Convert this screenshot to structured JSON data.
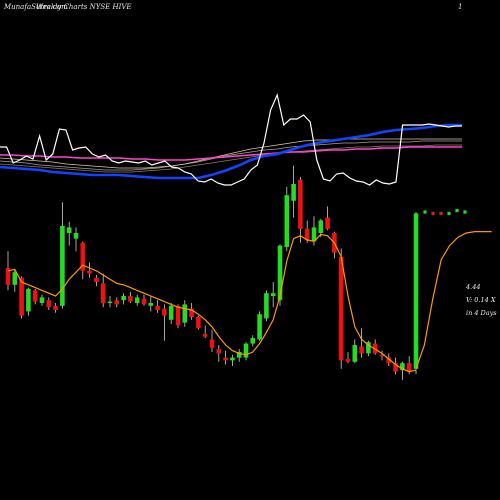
{
  "header": {
    "left_text": "MunafaSutra.com",
    "center_text": "Weekly Charts NYSE HIVE",
    "right_text": "1"
  },
  "info": {
    "price": "4.44",
    "volume": "V: 0.14  X",
    "days": "in  4  Days"
  },
  "colors": {
    "up": "#22dd22",
    "down": "#ee1111",
    "ema": "#ff9900",
    "volume_line": "#ffffff",
    "blue_ma": "#1144ff",
    "pink_ma": "#ff44cc"
  },
  "chart_data": {
    "type": "candlestick",
    "candles": [
      {
        "o": 12.0,
        "h": 13.2,
        "l": 10.4,
        "c": 10.8,
        "dir": "down"
      },
      {
        "o": 10.8,
        "h": 11.9,
        "l": 10.3,
        "c": 11.7,
        "dir": "up"
      },
      {
        "o": 11.3,
        "h": 11.4,
        "l": 8.4,
        "c": 8.6,
        "dir": "down"
      },
      {
        "o": 8.9,
        "h": 10.6,
        "l": 8.6,
        "c": 10.5,
        "dir": "up"
      },
      {
        "o": 10.4,
        "h": 10.5,
        "l": 9.4,
        "c": 9.6,
        "dir": "down"
      },
      {
        "o": 9.5,
        "h": 10.1,
        "l": 9.3,
        "c": 9.9,
        "dir": "up"
      },
      {
        "o": 9.7,
        "h": 9.9,
        "l": 9.0,
        "c": 9.2,
        "dir": "down"
      },
      {
        "o": 9.3,
        "h": 9.5,
        "l": 8.8,
        "c": 9.0,
        "dir": "down"
      },
      {
        "o": 9.3,
        "h": 16.7,
        "l": 9.1,
        "c": 15.0,
        "dir": "up"
      },
      {
        "o": 14.9,
        "h": 15.3,
        "l": 13.6,
        "c": 14.5,
        "dir": "up"
      },
      {
        "o": 14.1,
        "h": 14.9,
        "l": 13.2,
        "c": 14.5,
        "dir": "up"
      },
      {
        "o": 13.8,
        "h": 13.9,
        "l": 11.2,
        "c": 11.8,
        "dir": "down"
      },
      {
        "o": 11.8,
        "h": 12.4,
        "l": 11.3,
        "c": 11.6,
        "dir": "down"
      },
      {
        "o": 11.3,
        "h": 11.5,
        "l": 10.7,
        "c": 11.0,
        "dir": "down"
      },
      {
        "o": 10.9,
        "h": 11.6,
        "l": 9.2,
        "c": 9.5,
        "dir": "down"
      },
      {
        "o": 9.5,
        "h": 10.0,
        "l": 9.2,
        "c": 9.6,
        "dir": "up"
      },
      {
        "o": 9.7,
        "h": 9.9,
        "l": 9.2,
        "c": 9.4,
        "dir": "down"
      },
      {
        "o": 9.7,
        "h": 10.2,
        "l": 9.4,
        "c": 10.0,
        "dir": "up"
      },
      {
        "o": 10.0,
        "h": 10.3,
        "l": 9.5,
        "c": 9.6,
        "dir": "down"
      },
      {
        "o": 9.5,
        "h": 10.1,
        "l": 9.3,
        "c": 9.9,
        "dir": "up"
      },
      {
        "o": 9.8,
        "h": 10.1,
        "l": 9.3,
        "c": 9.4,
        "dir": "down"
      },
      {
        "o": 9.5,
        "h": 10.0,
        "l": 8.9,
        "c": 9.3,
        "dir": "up"
      },
      {
        "o": 9.3,
        "h": 9.7,
        "l": 8.8,
        "c": 9.0,
        "dir": "down"
      },
      {
        "o": 9.1,
        "h": 9.4,
        "l": 6.8,
        "c": 8.6,
        "dir": "down"
      },
      {
        "o": 8.3,
        "h": 9.5,
        "l": 8.0,
        "c": 9.3,
        "dir": "up"
      },
      {
        "o": 9.3,
        "h": 9.4,
        "l": 7.7,
        "c": 7.9,
        "dir": "down"
      },
      {
        "o": 8.1,
        "h": 9.7,
        "l": 7.8,
        "c": 9.4,
        "dir": "up"
      },
      {
        "o": 9.1,
        "h": 9.5,
        "l": 8.3,
        "c": 8.5,
        "dir": "down"
      },
      {
        "o": 8.5,
        "h": 8.6,
        "l": 7.6,
        "c": 7.7,
        "dir": "down"
      },
      {
        "o": 7.3,
        "h": 7.9,
        "l": 7.0,
        "c": 7.1,
        "dir": "down"
      },
      {
        "o": 6.9,
        "h": 7.6,
        "l": 6.0,
        "c": 6.3,
        "dir": "down"
      },
      {
        "o": 6.2,
        "h": 6.5,
        "l": 5.3,
        "c": 5.9,
        "dir": "down"
      },
      {
        "o": 5.6,
        "h": 6.1,
        "l": 5.1,
        "c": 5.4,
        "dir": "down"
      },
      {
        "o": 5.4,
        "h": 5.8,
        "l": 5.0,
        "c": 5.6,
        "dir": "up"
      },
      {
        "o": 5.6,
        "h": 6.2,
        "l": 5.3,
        "c": 6.0,
        "dir": "up"
      },
      {
        "o": 5.6,
        "h": 6.7,
        "l": 5.4,
        "c": 6.6,
        "dir": "up"
      },
      {
        "o": 6.6,
        "h": 7.2,
        "l": 6.4,
        "c": 7.0,
        "dir": "up"
      },
      {
        "o": 6.9,
        "h": 8.9,
        "l": 6.8,
        "c": 8.7,
        "dir": "up"
      },
      {
        "o": 8.4,
        "h": 10.4,
        "l": 8.2,
        "c": 10.2,
        "dir": "up"
      },
      {
        "o": 10.0,
        "h": 11.0,
        "l": 9.2,
        "c": 10.2,
        "dir": "up"
      },
      {
        "o": 9.7,
        "h": 13.7,
        "l": 9.3,
        "c": 13.6,
        "dir": "up"
      },
      {
        "o": 13.5,
        "h": 17.8,
        "l": 13.2,
        "c": 17.2,
        "dir": "up"
      },
      {
        "o": 16.8,
        "h": 19.3,
        "l": 15.6,
        "c": 18.0,
        "dir": "up"
      },
      {
        "o": 18.3,
        "h": 18.5,
        "l": 13.8,
        "c": 14.8,
        "dir": "down"
      },
      {
        "o": 14.8,
        "h": 15.4,
        "l": 13.8,
        "c": 14.0,
        "dir": "down"
      },
      {
        "o": 13.9,
        "h": 15.7,
        "l": 13.6,
        "c": 14.9,
        "dir": "up"
      },
      {
        "o": 14.5,
        "h": 15.5,
        "l": 14.2,
        "c": 15.4,
        "dir": "up"
      },
      {
        "o": 15.6,
        "h": 16.4,
        "l": 14.7,
        "c": 14.8,
        "dir": "down"
      },
      {
        "o": 14.5,
        "h": 14.6,
        "l": 12.7,
        "c": 13.1,
        "dir": "down"
      },
      {
        "o": 12.8,
        "h": 13.4,
        "l": 4.8,
        "c": 5.4,
        "dir": "down"
      },
      {
        "o": 5.5,
        "h": 6.0,
        "l": 5.2,
        "c": 5.3,
        "dir": "down"
      },
      {
        "o": 5.3,
        "h": 6.9,
        "l": 5.2,
        "c": 6.5,
        "dir": "up"
      },
      {
        "o": 6.4,
        "h": 7.7,
        "l": 5.6,
        "c": 5.9,
        "dir": "down"
      },
      {
        "o": 5.9,
        "h": 6.8,
        "l": 5.7,
        "c": 6.7,
        "dir": "up"
      },
      {
        "o": 6.6,
        "h": 6.9,
        "l": 5.8,
        "c": 5.9,
        "dir": "down"
      },
      {
        "o": 5.8,
        "h": 6.1,
        "l": 5.4,
        "c": 5.7,
        "dir": "down"
      },
      {
        "o": 5.6,
        "h": 5.9,
        "l": 5.0,
        "c": 5.2,
        "dir": "down"
      },
      {
        "o": 5.2,
        "h": 5.6,
        "l": 4.4,
        "c": 4.6,
        "dir": "down"
      },
      {
        "o": 4.7,
        "h": 5.3,
        "l": 4.0,
        "c": 5.2,
        "dir": "up"
      },
      {
        "o": 5.2,
        "h": 5.7,
        "l": 4.4,
        "c": 4.6,
        "dir": "down"
      },
      {
        "o": 4.8,
        "h": 16.0,
        "l": 4.4,
        "c": 15.9,
        "dir": "up"
      }
    ],
    "ema": [
      11.8,
      11.9,
      11.0,
      10.8,
      10.6,
      10.4,
      10.2,
      10.0,
      10.5,
      11.2,
      11.7,
      12.2,
      12.0,
      11.8,
      11.5,
      11.2,
      10.9,
      10.8,
      10.6,
      10.4,
      10.2,
      10.0,
      9.8,
      9.6,
      9.4,
      9.2,
      9.1,
      9.0,
      8.7,
      8.3,
      7.8,
      7.1,
      6.5,
      6.1,
      5.9,
      5.8,
      6.0,
      6.6,
      7.4,
      8.3,
      10.0,
      12.5,
      14.1,
      14.3,
      14.0,
      13.9,
      14.4,
      14.3,
      13.8,
      12.8,
      10.0,
      7.8,
      6.9,
      6.5,
      6.2,
      5.9,
      5.5,
      5.1,
      4.8,
      4.6,
      4.7
    ],
    "projection": [
      4.8,
      6.5,
      9.8,
      12.6,
      13.6,
      14.2,
      14.5,
      14.6,
      14.6,
      14.6
    ],
    "projection_dots": [
      {
        "y": 16.0,
        "dir": "up"
      },
      {
        "y": 15.9,
        "dir": "down"
      },
      {
        "y": 15.9,
        "dir": "down"
      },
      {
        "y": 15.9,
        "dir": "up"
      },
      {
        "y": 16.1,
        "dir": "up"
      },
      {
        "y": 16.0,
        "dir": "up"
      }
    ],
    "volume_line": [
      3.8,
      3.8,
      2.2,
      2.5,
      2.9,
      2.6,
      4.9,
      2.5,
      3.1,
      5.6,
      5.5,
      3.5,
      3.7,
      3.8,
      3.1,
      2.8,
      3.0,
      2.4,
      2.2,
      2.4,
      2.3,
      2.2,
      2.4,
      2.0,
      2.2,
      2.4,
      1.8,
      1.7,
      1.3,
      1.1,
      0.4,
      0.3,
      0.6,
      0.2,
      0.0,
      0.0,
      0.3,
      0.6,
      1.5,
      2.0,
      4.2,
      7.5,
      9.0,
      6.0,
      6.6,
      6.6,
      7.0,
      6.3,
      2.5,
      0.6,
      0.4,
      1.1,
      1.2,
      0.7,
      0.4,
      0.3,
      0.0,
      0.5,
      0.2,
      0.1,
      0.3,
      6.0,
      6.0,
      6.0,
      6.0,
      6.1,
      6.0,
      5.9,
      5.8,
      5.9,
      5.9
    ],
    "blue_ma": [
      1.8,
      1.7,
      1.6,
      1.5,
      1.3,
      1.2,
      1.1,
      1.0,
      1.0,
      1.0,
      0.9,
      0.8,
      0.7,
      0.7,
      0.7,
      0.7,
      1.0,
      1.4,
      1.9,
      2.5,
      2.9,
      3.1,
      3.5,
      3.9,
      4.2,
      4.4,
      4.6,
      4.8,
      5.0,
      5.3,
      5.5,
      5.6,
      5.7,
      5.9,
      6.0,
      6.0
    ],
    "pink_ma": [
      3.0,
      3.0,
      2.9,
      2.9,
      2.8,
      2.8,
      2.7,
      2.7,
      2.7,
      2.7,
      2.6,
      2.6,
      2.5,
      2.5,
      2.5,
      2.6,
      2.7,
      2.8,
      2.9,
      3.0,
      3.1,
      3.2,
      3.3,
      3.3,
      3.4,
      3.5,
      3.5,
      3.6,
      3.6,
      3.7,
      3.7,
      3.8,
      3.8,
      3.8,
      3.8,
      3.8
    ],
    "grey_ma_1": [
      2.7,
      2.6,
      2.5,
      2.4,
      2.3,
      2.1,
      2.0,
      1.9,
      1.8,
      1.7,
      1.7,
      1.7,
      1.8,
      1.9,
      2.1,
      2.4,
      2.7,
      3.0,
      3.3,
      3.6,
      3.8,
      4.0,
      4.2,
      4.4,
      4.5,
      4.5,
      4.6,
      4.6,
      4.6,
      4.6,
      4.6,
      4.6,
      4.6,
      4.6,
      4.6,
      4.6
    ],
    "grey_ma_2": [
      2.4,
      2.3,
      2.2,
      2.0,
      1.9,
      1.8,
      1.7,
      1.6,
      1.5,
      1.5,
      1.5,
      1.6,
      1.7,
      1.9,
      2.1,
      2.3,
      2.6,
      2.9,
      3.1,
      3.3,
      3.5,
      3.6,
      3.8,
      3.9,
      4.0,
      4.1,
      4.2,
      4.2,
      4.3,
      4.3,
      4.3,
      4.3,
      4.4,
      4.4,
      4.4,
      4.4
    ],
    "grey_ma_3": [
      2.1,
      2.0,
      1.9,
      1.8,
      1.7,
      1.6,
      1.5,
      1.4,
      1.3,
      1.3,
      1.3,
      1.4,
      1.5,
      1.6,
      1.8,
      2.0,
      2.2,
      2.4,
      2.6,
      2.8,
      3.0,
      3.1,
      3.3,
      3.4,
      3.5,
      3.6,
      3.7,
      3.8,
      3.8,
      3.9,
      3.9,
      3.9,
      3.9,
      4.0,
      4.0,
      4.0
    ]
  }
}
